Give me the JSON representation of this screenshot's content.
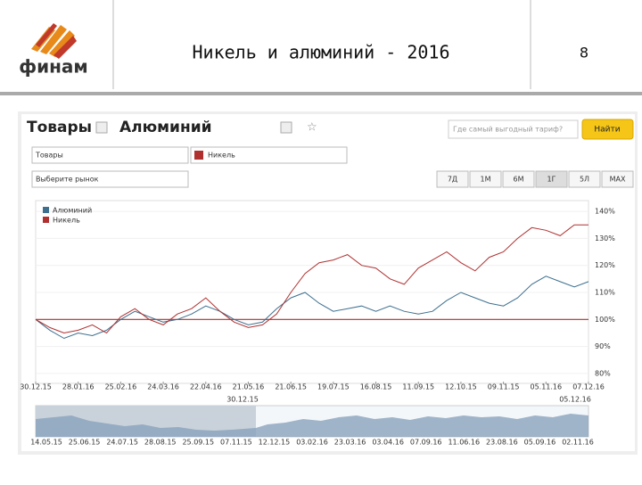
{
  "slide": {
    "logo": "финам",
    "title": "Никель и алюминий - 2016",
    "page": "8"
  },
  "ui": {
    "header_group": "Товары",
    "header_item": "Алюминий",
    "search_placeholder": "Где самый выгодный тариф?",
    "search_button": "Найти",
    "dropdown_group": "Товары",
    "dropdown_item": "Никель",
    "dropdown_market": "Выберите рынок",
    "periods": [
      "7Д",
      "1М",
      "6М",
      "1Г",
      "5Л",
      "MAX"
    ],
    "navigator_labels": [
      "14.05.15",
      "25.06.15",
      "24.07.15",
      "28.08.15",
      "25.09.15",
      "07.11.15",
      "12.12.15",
      "03.02.16",
      "23.03.16",
      "03.04.16",
      "07.09.16",
      "11.06.16",
      "23.08.16",
      "05.09.16",
      "02.11.16"
    ],
    "navigator_start": "30.12.15",
    "navigator_end": "05.12.16"
  },
  "chart_data": {
    "type": "line",
    "categories": [
      "30.12.15",
      null,
      null,
      "28.01.16",
      null,
      null,
      "25.02.16",
      null,
      null,
      "24.03.16",
      null,
      null,
      "22.04.16",
      null,
      null,
      "21.05.16",
      null,
      null,
      "21.06.15",
      null,
      null,
      "19.07.15",
      null,
      null,
      "16.08.15",
      null,
      null,
      "11.09.15",
      null,
      null,
      "12.10.15",
      null,
      null,
      "09.11.15",
      null,
      null,
      "05.11.16",
      null,
      null,
      "07.12.16"
    ],
    "series": [
      {
        "name": "Алюминий",
        "color": "#3d6f8f",
        "values": [
          100,
          96,
          93,
          95,
          94,
          96,
          100,
          103,
          101,
          99,
          100,
          102,
          105,
          103,
          100,
          98,
          99,
          104,
          108,
          110,
          106,
          103,
          104,
          105,
          103,
          105,
          103,
          102,
          103,
          107,
          110,
          108,
          106,
          105,
          108,
          113,
          116,
          114,
          112,
          114
        ]
      },
      {
        "name": "Никель",
        "color": "#b03030",
        "values": [
          100,
          97,
          95,
          96,
          98,
          95,
          101,
          104,
          100,
          98,
          102,
          104,
          108,
          103,
          99,
          97,
          98,
          102,
          110,
          117,
          121,
          122,
          124,
          120,
          119,
          115,
          113,
          119,
          122,
          125,
          121,
          118,
          123,
          125,
          130,
          134,
          133,
          131,
          135,
          135
        ]
      }
    ],
    "baseline": 100,
    "ylim": [
      77,
      143
    ],
    "yticks": [
      {
        "value": 80,
        "label": "80%"
      },
      {
        "value": 90,
        "label": "90%"
      },
      {
        "value": 100,
        "label": "100%"
      },
      {
        "value": 110,
        "label": "110%"
      },
      {
        "value": 120,
        "label": "120%"
      },
      {
        "value": 130,
        "label": "130%"
      },
      {
        "value": 140,
        "label": "140%"
      }
    ],
    "grid": true
  }
}
